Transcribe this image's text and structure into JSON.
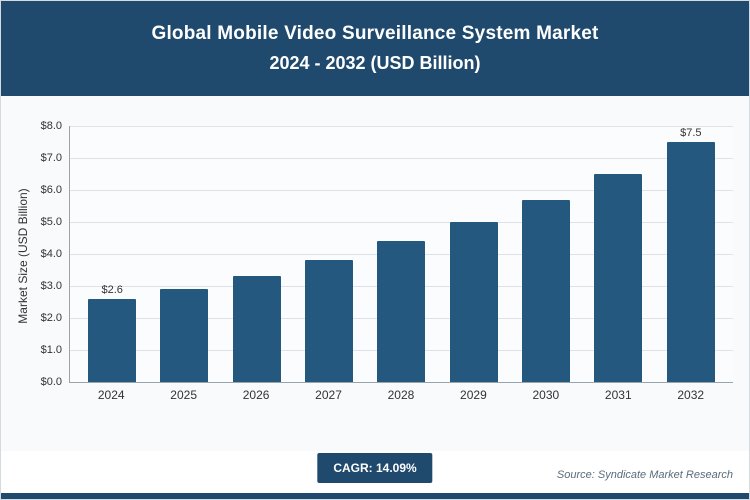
{
  "header": {
    "title_line1": "Global Mobile Video Surveillance System Market",
    "title_line2": "2024 - 2032 (USD Billion)"
  },
  "chart_data": {
    "type": "bar",
    "title": "Global Mobile Video Surveillance System Market 2024 - 2032 (USD Billion)",
    "categories": [
      "2024",
      "2025",
      "2026",
      "2027",
      "2028",
      "2029",
      "2030",
      "2031",
      "2032"
    ],
    "values": [
      2.6,
      2.9,
      3.3,
      3.8,
      4.4,
      5.0,
      5.7,
      6.5,
      7.5
    ],
    "bar_labels": [
      "$2.6",
      "",
      "",
      "",
      "",
      "",
      "",
      "",
      "$7.5"
    ],
    "xlabel": "",
    "ylabel": "Market Size (USD Billion)",
    "ylim": [
      0,
      8
    ],
    "ytick_step": 1,
    "ytick_labels": [
      "$0.0",
      "$1.0",
      "$2.0",
      "$3.0",
      "$4.0",
      "$5.0",
      "$6.0",
      "$7.0",
      "$8.0"
    ],
    "grid": true,
    "legend": "none",
    "bar_color": "#24587E"
  },
  "footer": {
    "cagr_label": "CAGR: 14.09%",
    "source": "Source: Syndicate Market Research"
  },
  "colors": {
    "header_bg": "#1F4A6E",
    "accent": "#1F4A6E",
    "bar": "#24587E",
    "chart_bg": "#f8fafb"
  }
}
